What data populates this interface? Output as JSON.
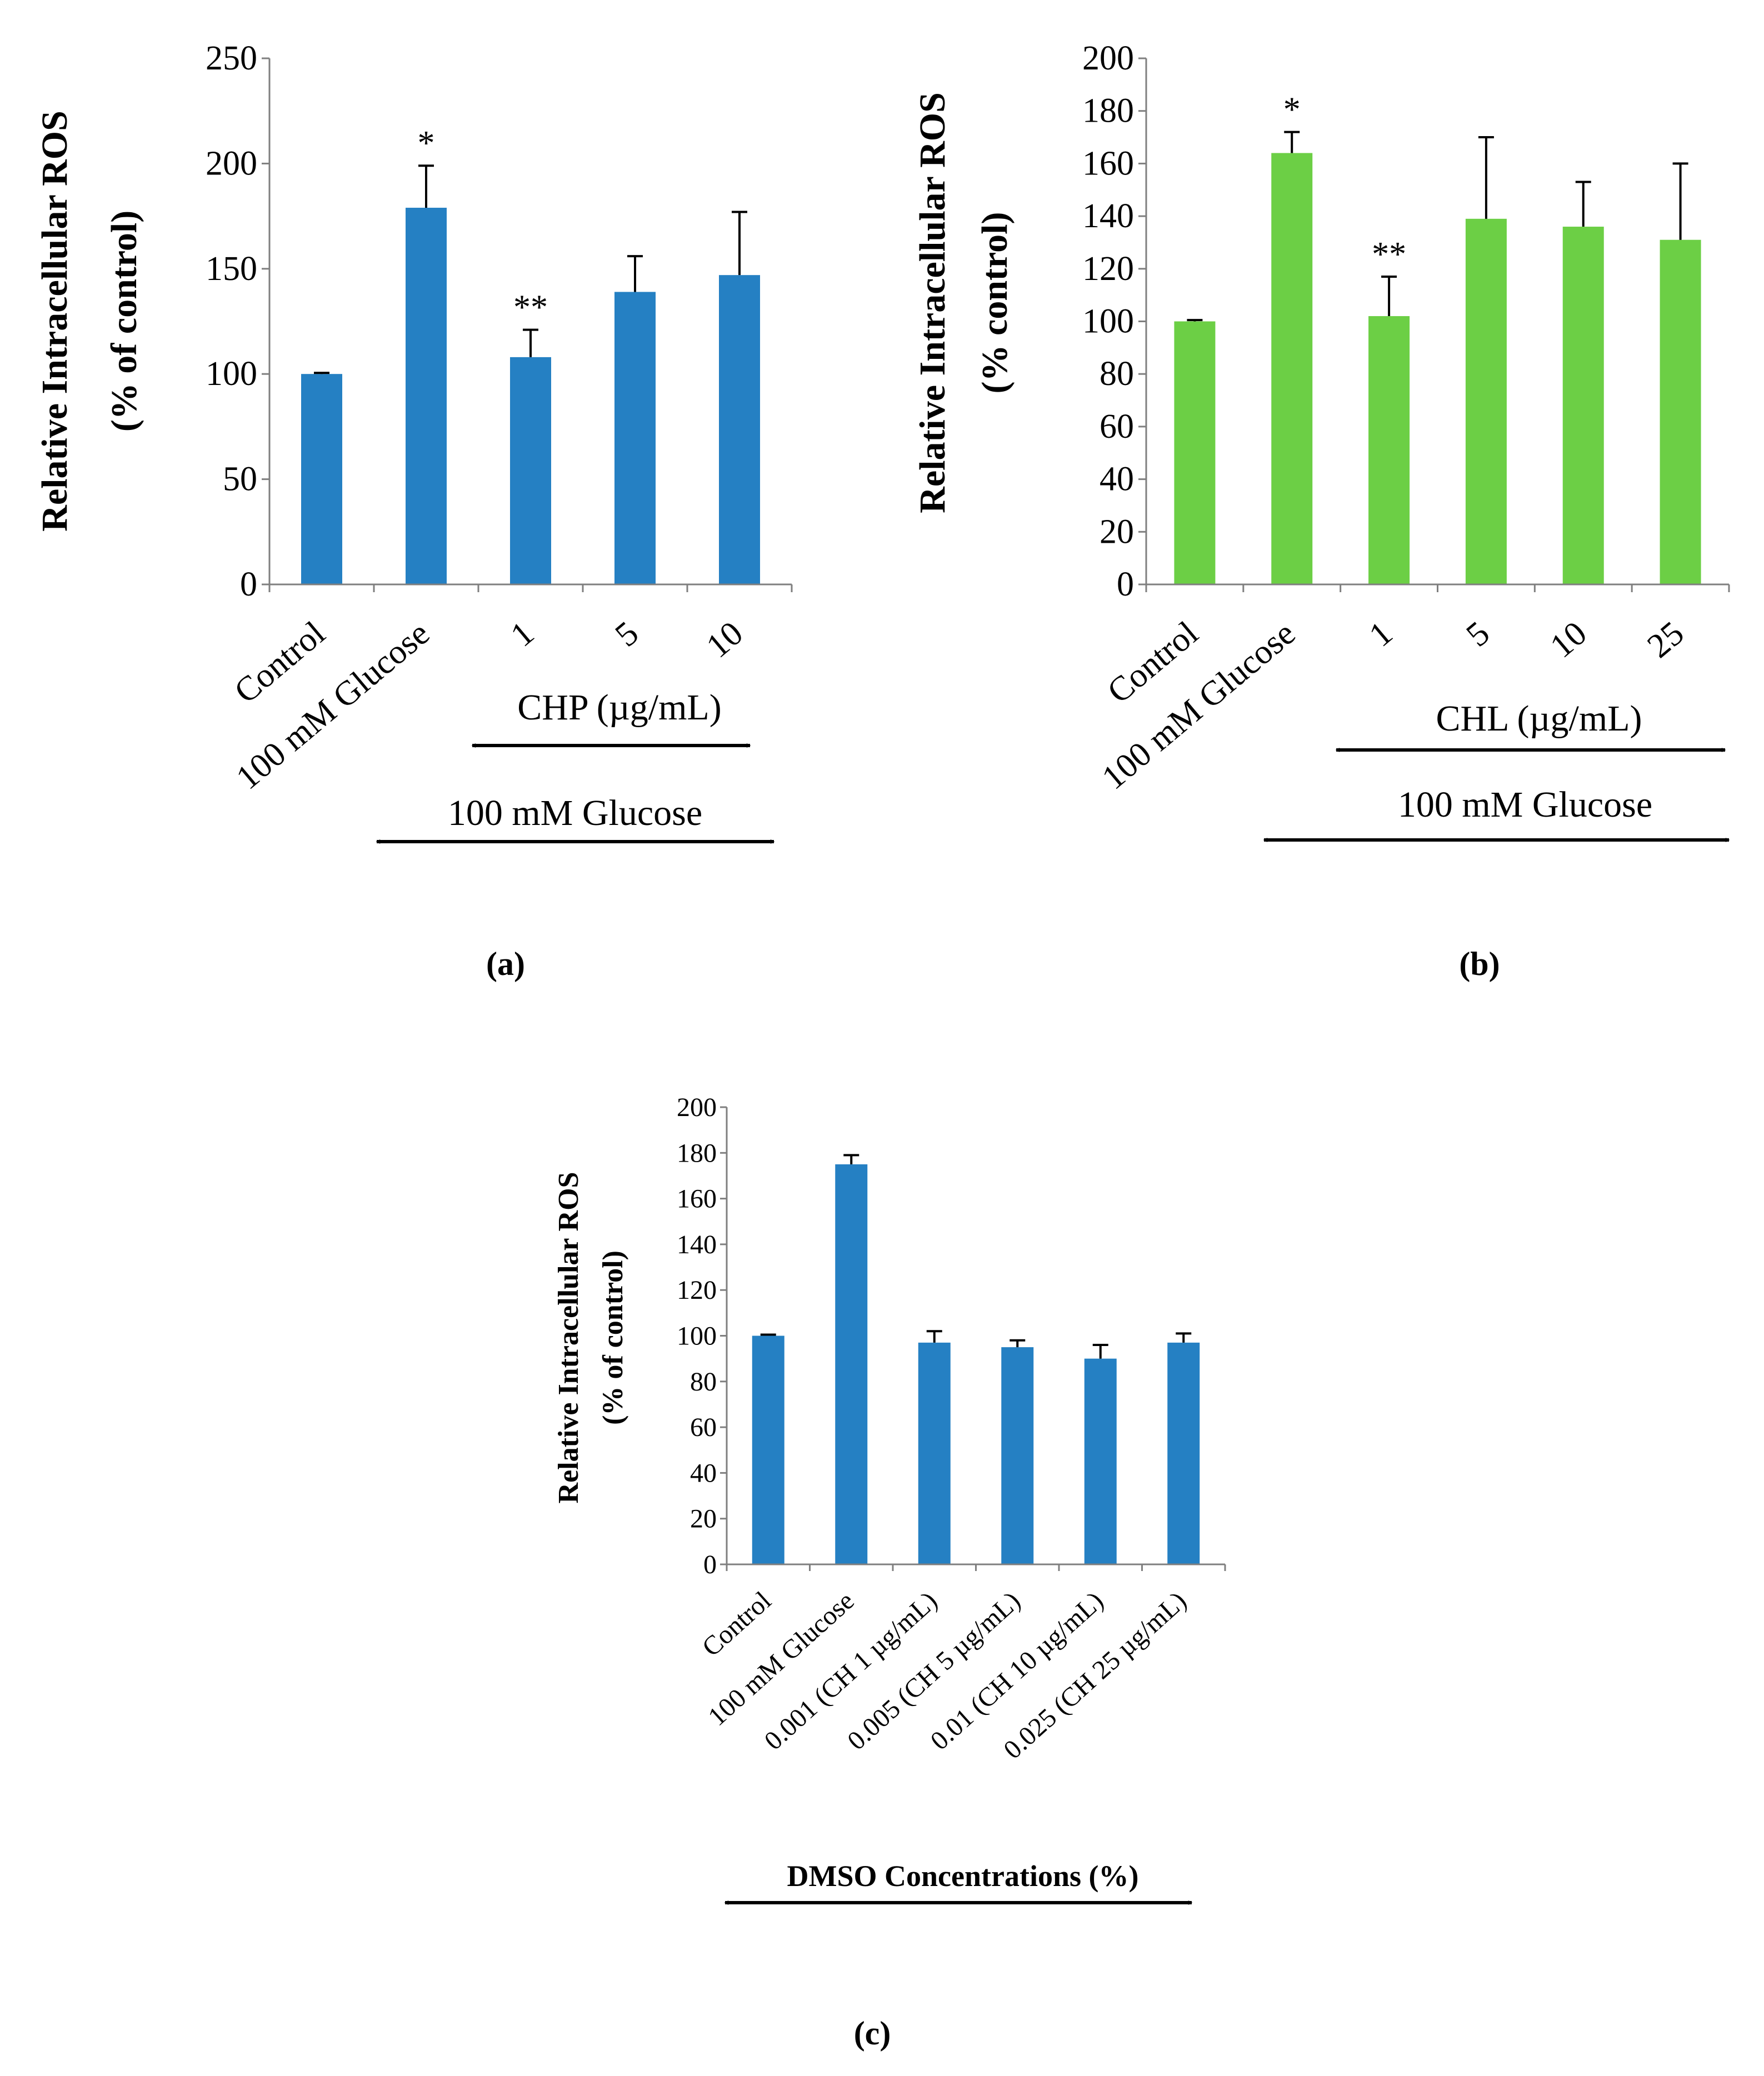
{
  "chart_data": [
    {
      "id": "a",
      "type": "bar",
      "caption": "(a)",
      "color": "#2580c3",
      "categories": [
        "Control",
        "100 mM Glucose",
        "1",
        "5",
        "10"
      ],
      "values": [
        100,
        179,
        108,
        139,
        147
      ],
      "errors": [
        0.5,
        20,
        13,
        17,
        30
      ],
      "annotations": [
        "",
        "*",
        "**",
        "",
        ""
      ],
      "ylabel": "Relative Intracellular ROS",
      "ylabel2": "(% of control)",
      "ylim": [
        0,
        250
      ],
      "yticks": [
        0,
        50,
        100,
        150,
        200,
        250
      ],
      "bracket_inner": "CHP (µg/mL)",
      "bracket_outer": "100 mM Glucose"
    },
    {
      "id": "b",
      "type": "bar",
      "caption": "(b)",
      "color": "#6ccf45",
      "categories": [
        "Control",
        "100 mM Glucose",
        "1",
        "5",
        "10",
        "25"
      ],
      "values": [
        100,
        164,
        102,
        139,
        136,
        131
      ],
      "errors": [
        0.5,
        8,
        15,
        31,
        17,
        29
      ],
      "annotations": [
        "",
        "*",
        "**",
        "",
        "",
        ""
      ],
      "ylabel": "Relative Intracellular ROS",
      "ylabel2": "(% control)",
      "ylim": [
        0,
        200
      ],
      "yticks": [
        0,
        20,
        40,
        60,
        80,
        100,
        120,
        140,
        160,
        180,
        200
      ],
      "bracket_inner": "CHL (µg/mL)",
      "bracket_outer": "100 mM Glucose"
    },
    {
      "id": "c",
      "type": "bar",
      "caption": "(c)",
      "color": "#2580c3",
      "categories": [
        "Control",
        "100 mM Glucose",
        "0.001 (CH 1 µg/mL)",
        "0.005 (CH 5 µg/mL)",
        "0.01 (CH 10 µg/mL)",
        "0.025 (CH 25 µg/mL)"
      ],
      "values": [
        100,
        175,
        97,
        95,
        90,
        97
      ],
      "errors": [
        0.5,
        4,
        5,
        3,
        6,
        4
      ],
      "annotations": [
        "",
        "",
        "",
        "",
        "",
        ""
      ],
      "ylabel": "Relative Intracellular ROS",
      "ylabel2": "(% of control)",
      "ylim": [
        0,
        200
      ],
      "yticks": [
        0,
        20,
        40,
        60,
        80,
        100,
        120,
        140,
        160,
        180,
        200
      ],
      "bracket_label": "DMSO Concentrations (%)"
    }
  ]
}
